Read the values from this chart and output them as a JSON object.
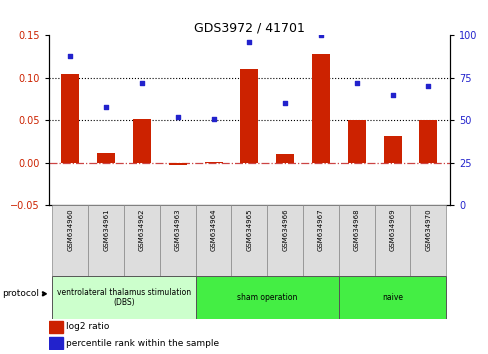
{
  "title": "GDS3972 / 41701",
  "samples": [
    "GSM634960",
    "GSM634961",
    "GSM634962",
    "GSM634963",
    "GSM634964",
    "GSM634965",
    "GSM634966",
    "GSM634967",
    "GSM634968",
    "GSM634969",
    "GSM634970"
  ],
  "log2_ratio": [
    0.105,
    0.011,
    0.052,
    -0.003,
    0.001,
    0.111,
    0.01,
    0.128,
    0.051,
    0.032,
    0.051
  ],
  "percentile_rank": [
    88,
    58,
    72,
    52,
    51,
    96,
    60,
    100,
    72,
    65,
    70
  ],
  "ylim_left": [
    -0.05,
    0.15
  ],
  "ylim_right": [
    0,
    100
  ],
  "yticks_left": [
    -0.05,
    0.0,
    0.05,
    0.1,
    0.15
  ],
  "yticks_right": [
    0,
    25,
    50,
    75,
    100
  ],
  "hlines": [
    0.05,
    0.1
  ],
  "bar_color": "#cc2200",
  "dot_color": "#2222cc",
  "zero_line_color": "#cc4444",
  "protocol_groups": [
    {
      "label": "ventrolateral thalamus stimulation\n(DBS)",
      "start": 0,
      "end": 3,
      "color": "#ccffcc"
    },
    {
      "label": "sham operation",
      "start": 4,
      "end": 7,
      "color": "#44ee44"
    },
    {
      "label": "naive",
      "start": 8,
      "end": 10,
      "color": "#44ee44"
    }
  ],
  "legend_items": [
    {
      "label": "log2 ratio",
      "color": "#cc2200"
    },
    {
      "label": "percentile rank within the sample",
      "color": "#2222cc"
    }
  ],
  "figsize": [
    4.89,
    3.54
  ],
  "dpi": 100
}
